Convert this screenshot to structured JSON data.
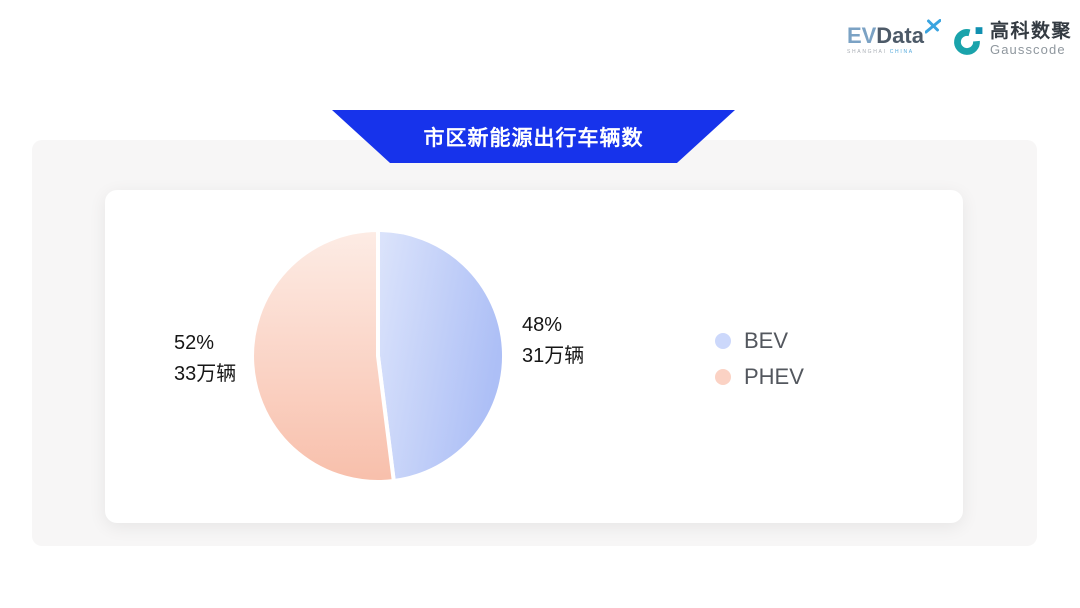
{
  "logos": {
    "evdata": {
      "ev": "EV",
      "data": "Data",
      "sub_left": "SHANGHAI",
      "sub_right": "CHINA",
      "x_icon_color": "#3aa4e0"
    },
    "gausscode": {
      "cn": "高科数聚",
      "en": "Gausscode",
      "mark_color": "#1aa3ab"
    }
  },
  "banner": {
    "title": "市区新能源出行车辆数",
    "background": "#1733eb",
    "text_color": "#ffffff"
  },
  "chart_data": {
    "type": "pie",
    "title": "市区新能源出行车辆数",
    "unit": "万辆",
    "legend_position": "right",
    "start_angle_deg": 0,
    "clockwise": true,
    "series": [
      {
        "name": "BEV",
        "value": 31,
        "percent": 48,
        "percent_label": "48%",
        "value_label": "31万辆",
        "gradient": [
          "#dce4fb",
          "#adbff6"
        ],
        "legend_color": "#ccd8fb"
      },
      {
        "name": "PHEV",
        "value": 33,
        "percent": 52,
        "percent_label": "52%",
        "value_label": "33万辆",
        "gradient": [
          "#fdece5",
          "#f8bfab"
        ],
        "legend_color": "#fbd2c4"
      }
    ]
  }
}
